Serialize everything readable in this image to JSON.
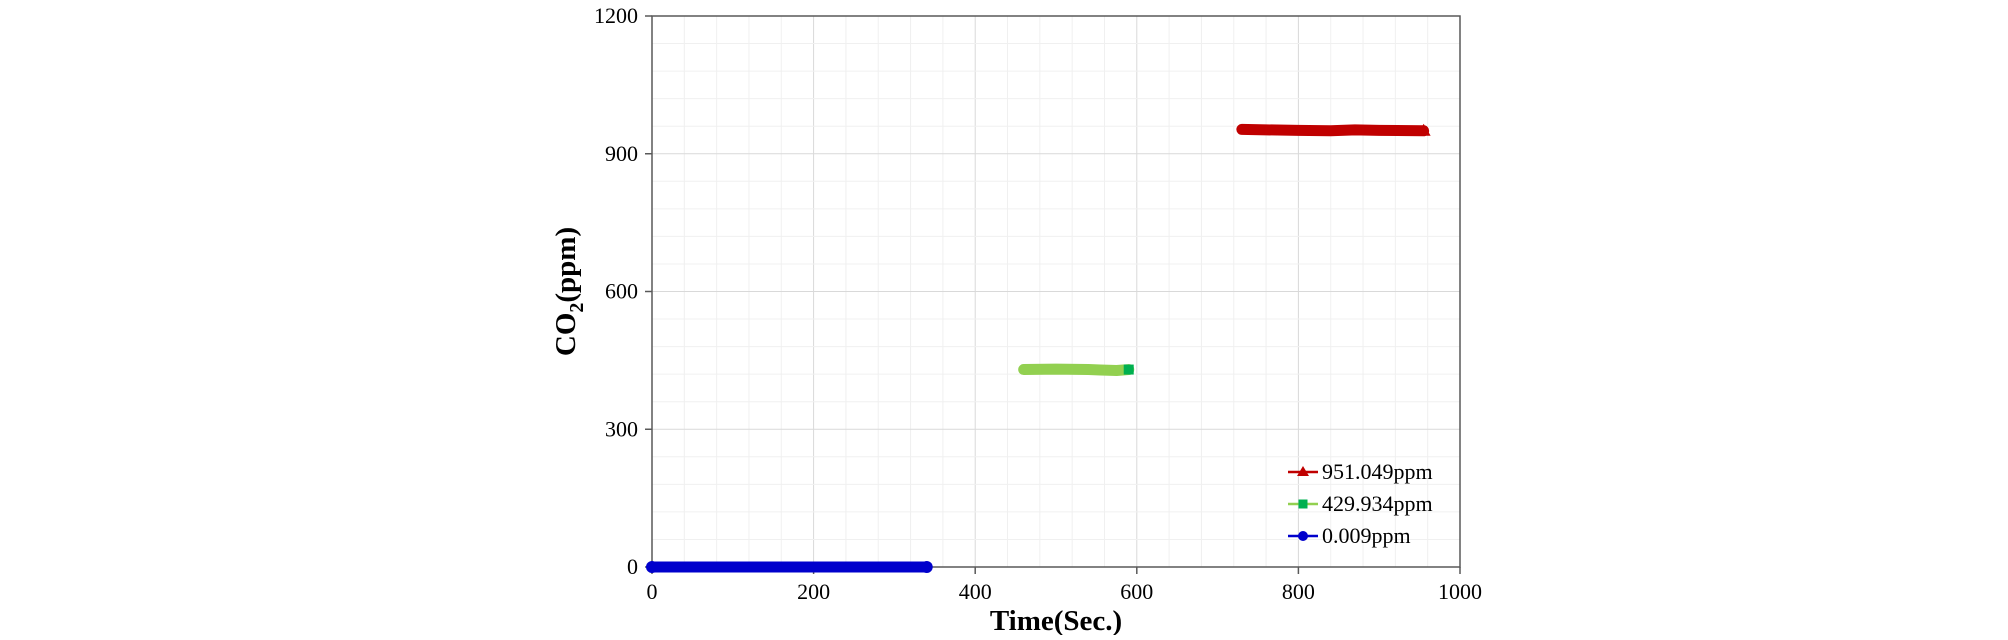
{
  "chart_data": {
    "type": "scatter",
    "title": "",
    "xlabel": "Time(Sec.)",
    "ylabel_main": "CO",
    "ylabel_sub": "2",
    "ylabel_unit": "(ppm)",
    "xlim": [
      0,
      1000
    ],
    "ylim": [
      0,
      1200
    ],
    "x_ticks": [
      0,
      200,
      400,
      600,
      800,
      1000
    ],
    "y_ticks": [
      0,
      300,
      600,
      900,
      1200
    ],
    "grid": true,
    "legend_position": "bottom-right",
    "series": [
      {
        "name": "951.049ppm",
        "color": "#c00000",
        "marker": "triangle",
        "x_start": 730,
        "x_end": 955,
        "values": [
          [
            730,
            953
          ],
          [
            760,
            952
          ],
          [
            800,
            951
          ],
          [
            840,
            950
          ],
          [
            870,
            952
          ],
          [
            900,
            951
          ],
          [
            955,
            950
          ]
        ]
      },
      {
        "name": "429.934ppm",
        "color": "#92d050",
        "marker_color": "#00b050",
        "marker": "square",
        "x_start": 460,
        "x_end": 590,
        "values": [
          [
            460,
            430
          ],
          [
            500,
            431
          ],
          [
            540,
            430
          ],
          [
            555,
            429
          ],
          [
            575,
            428
          ],
          [
            590,
            430
          ]
        ]
      },
      {
        "name": "0.009ppm",
        "color": "#0000cc",
        "marker": "circle",
        "x_start": 0,
        "x_end": 340,
        "values": [
          [
            0,
            0.009
          ],
          [
            100,
            0.009
          ],
          [
            200,
            0.009
          ],
          [
            300,
            0.009
          ],
          [
            340,
            0.009
          ]
        ]
      }
    ]
  }
}
